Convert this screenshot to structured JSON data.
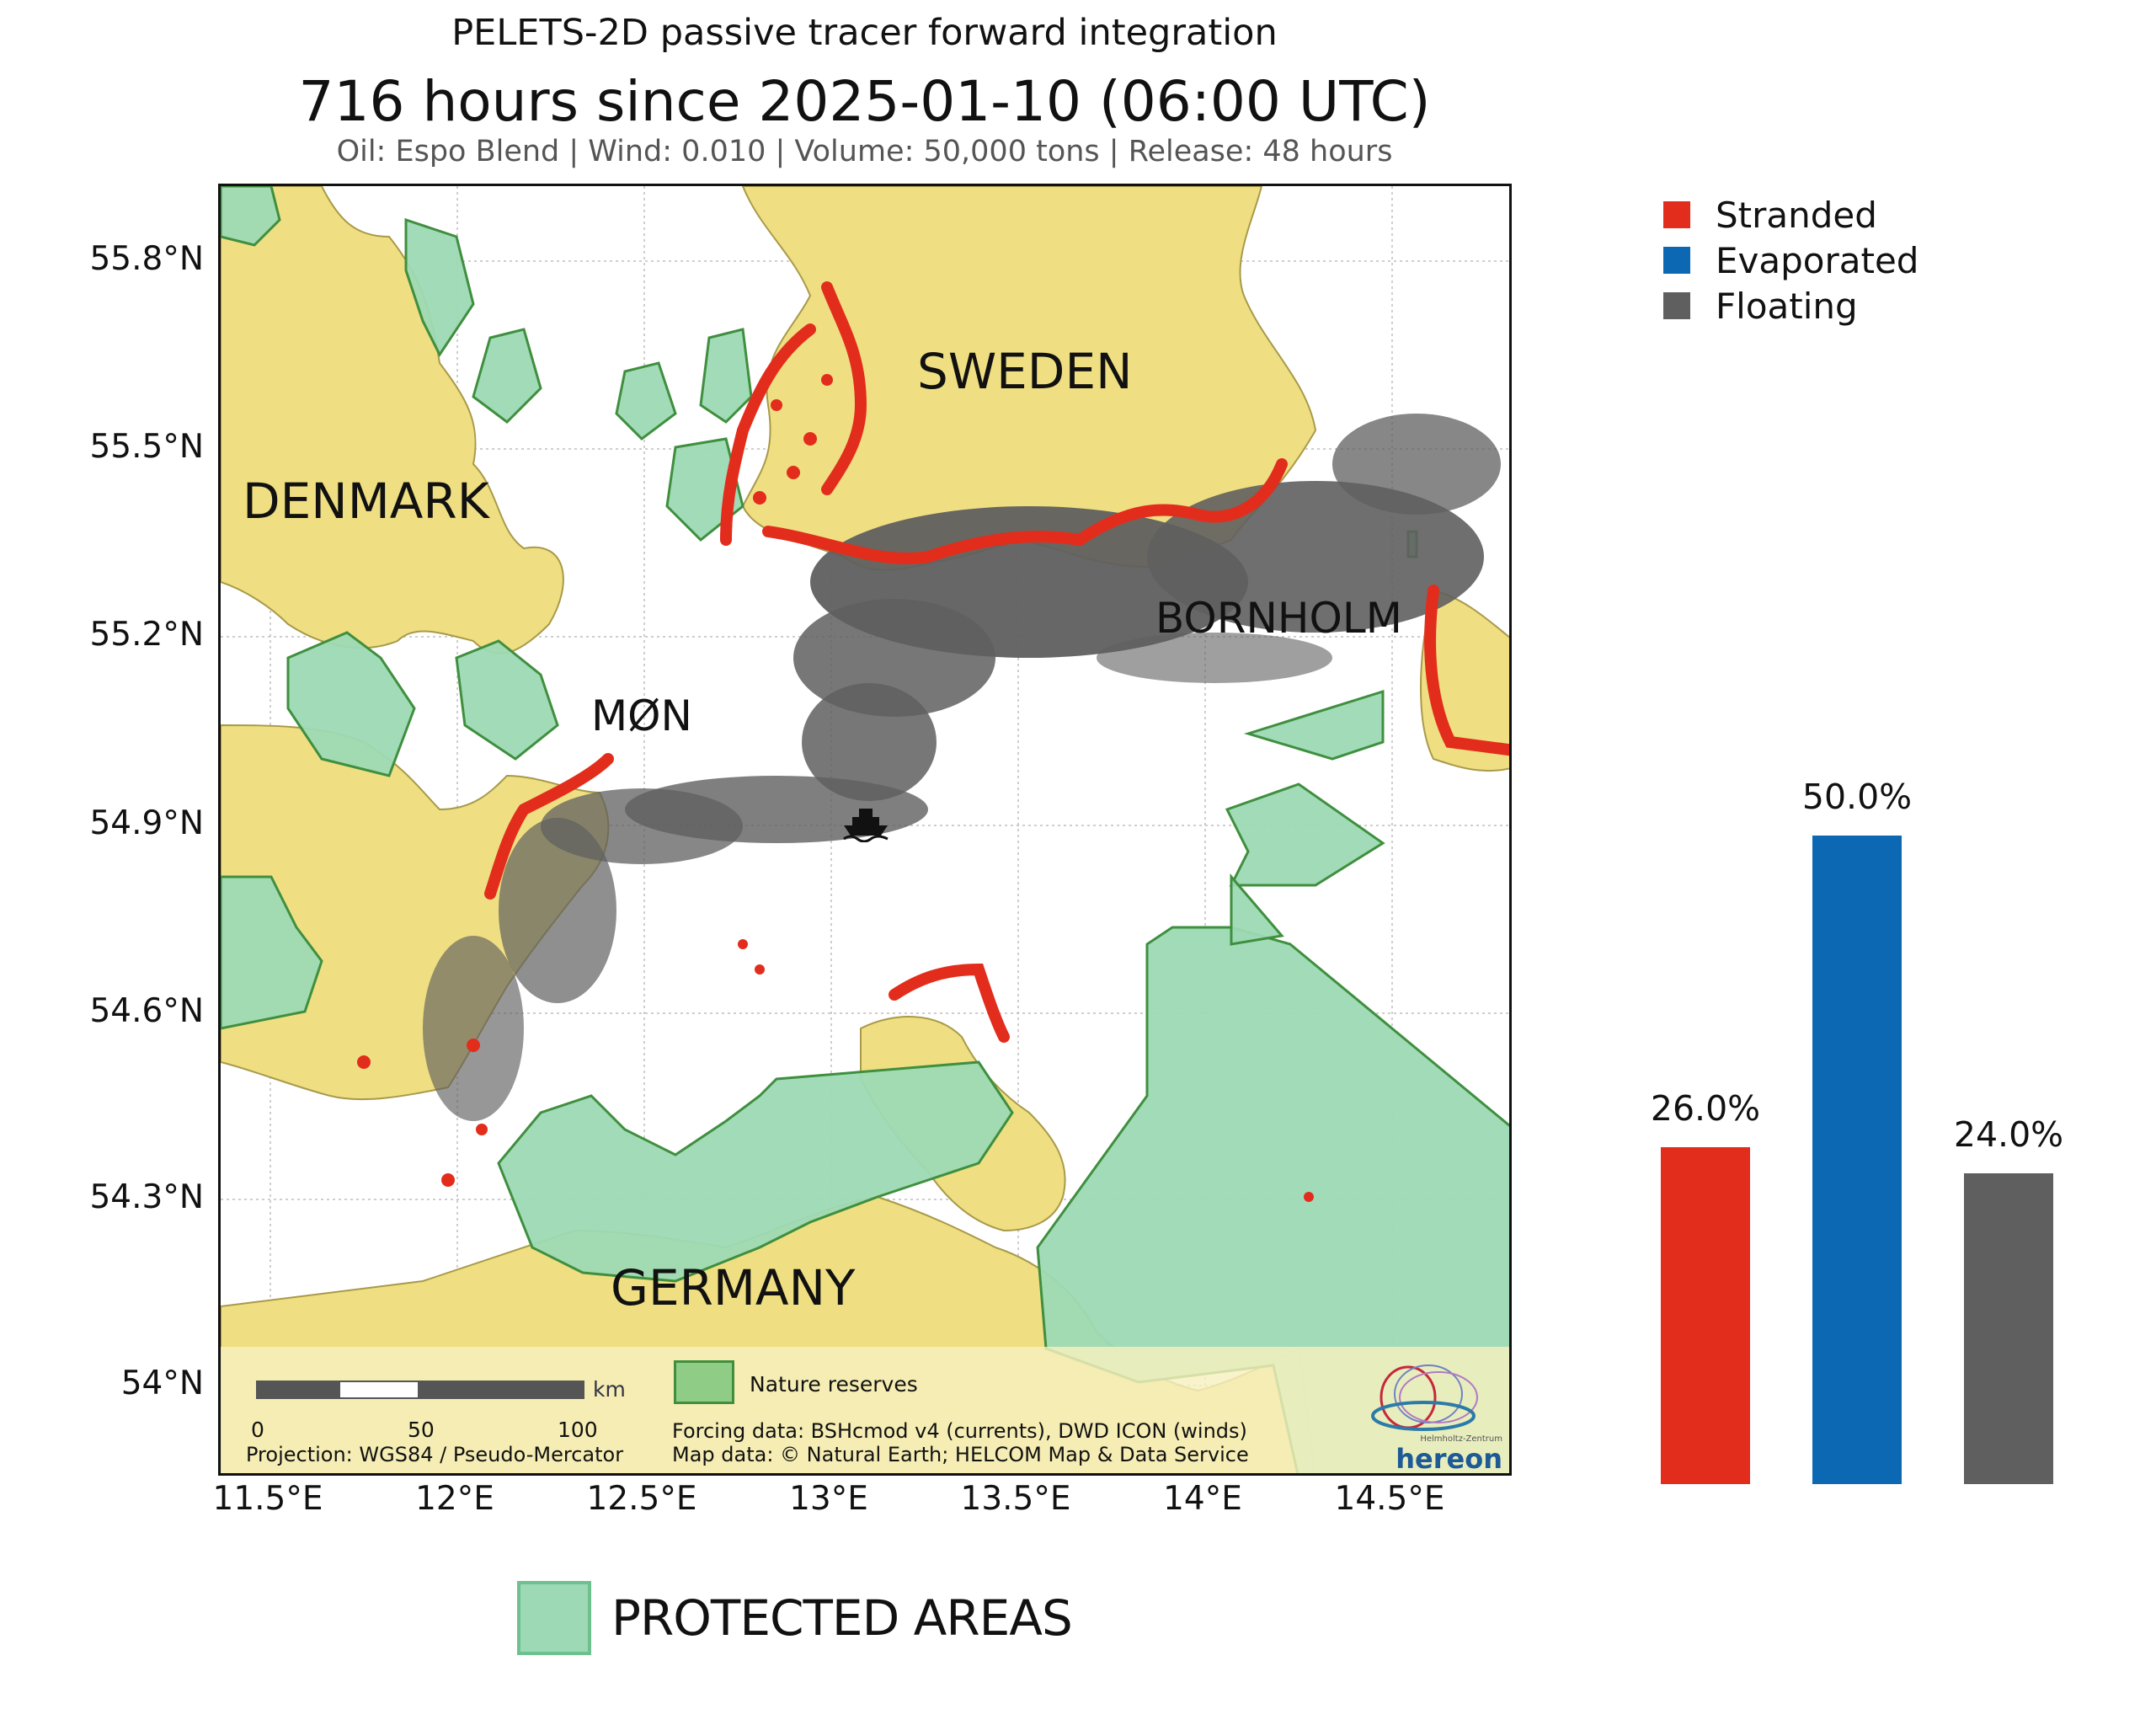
{
  "title": {
    "line1": "PELETS-2D passive tracer forward integration",
    "line2": "716 hours since 2025-01-10 (06:00 UTC)",
    "line3": "Oil: Espo Blend | Wind: 0.010 | Volume: 50,000 tons | Release: 48 hours"
  },
  "map": {
    "lat_ticks": [
      "55.8°N",
      "55.5°N",
      "55.2°N",
      "54.9°N",
      "54.6°N",
      "54.3°N",
      "54°N"
    ],
    "lon_ticks": [
      "11.5°E",
      "12°E",
      "12.5°E",
      "13°E",
      "13.5°E",
      "14°E",
      "14.5°E"
    ],
    "labels": {
      "sweden": "SWEDEN",
      "denmark": "DENMARK",
      "germany": "GERMANY",
      "bornholm": "BORNHOLM",
      "mon": "MØN"
    },
    "scale_bar": {
      "unit": "km",
      "ticks": [
        "0",
        "50",
        "100"
      ]
    },
    "inset_legend": {
      "nature_reserves": "Nature reserves"
    },
    "projection": "Projection: WGS84 / Pseudo-Mercator",
    "forcing": "Forcing data: BSHcmod v4 (currents), DWD ICON (winds)",
    "map_data": "Map data: © Natural Earth; HELCOM Map & Data Service",
    "logo_text": "hereon",
    "logo_subtext": "Helmholtz-Zentrum",
    "ship_icon": "ship-icon",
    "colors": {
      "land": "#efdf82",
      "protected": "#9dd9b4",
      "protected_edge": "#3f8f3f",
      "stranded": "#e32d1c",
      "floating": "#5f5f5f"
    }
  },
  "legend": {
    "items": [
      {
        "label": "Stranded",
        "color": "#e32d1c"
      },
      {
        "label": "Evaporated",
        "color": "#0d68b4"
      },
      {
        "label": "Floating",
        "color": "#5f5f5f"
      }
    ]
  },
  "chart_data": {
    "type": "bar",
    "categories": [
      "Stranded",
      "Evaporated",
      "Floating"
    ],
    "values": [
      26.0,
      50.0,
      24.0
    ],
    "labels": [
      "26.0%",
      "50.0%",
      "24.0%"
    ],
    "colors": [
      "#e32d1c",
      "#0d68b4",
      "#5f5f5f"
    ],
    "ylim": [
      0,
      56
    ]
  },
  "protected_areas_legend": {
    "label": "PROTECTED AREAS"
  }
}
